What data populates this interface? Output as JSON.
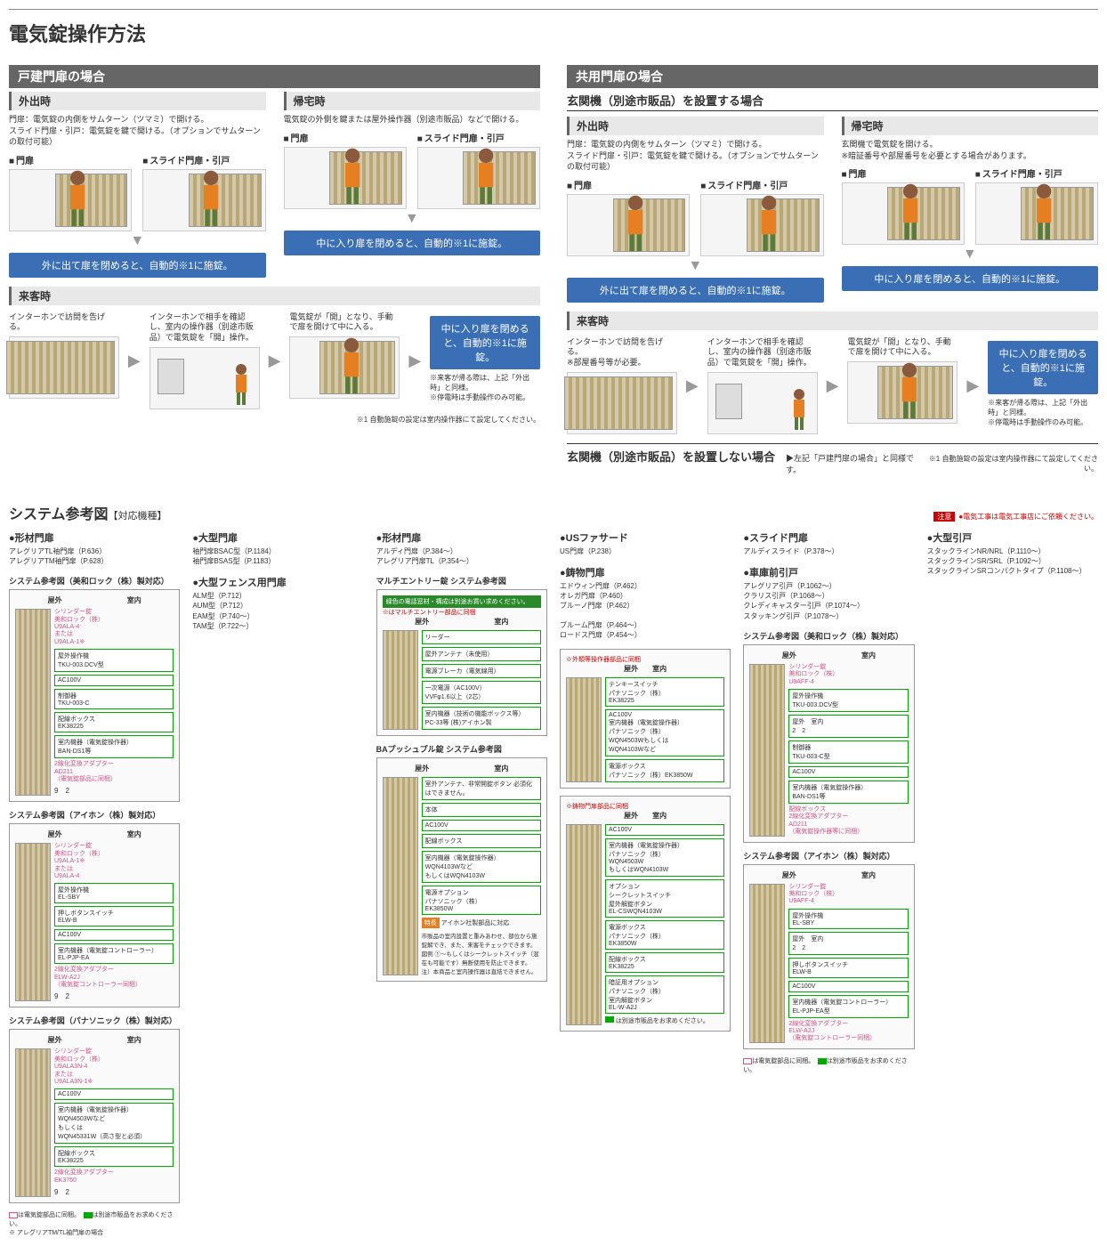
{
  "page_title": "電気錠操作方法",
  "left": {
    "section": "戸建門扉の場合",
    "out": {
      "title": "外出時",
      "desc": "門扉：電気錠の内側をサムターン（ツマミ）で開ける。\nスライド門扉・引戸：電気錠を鍵で開ける。（オプションでサムターンの取付可能）",
      "gate1": "門扉",
      "gate2": "スライド門扉・引戸",
      "box": "外に出て扉を閉めると、自動的※1に施錠。"
    },
    "home": {
      "title": "帰宅時",
      "desc": "電気錠の外側を鍵または屋外操作器（別途市販品）などで開ける。",
      "gate1": "門扉",
      "gate2": "スライド門扉・引戸",
      "box": "中に入り扉を閉めると、自動的※1に施錠。"
    },
    "visitor": {
      "title": "来客時",
      "step1": "インターホンで訪問を告げる。",
      "step2": "インターホンで相手を確認し、室内の操作器（別途市販品）で電気錠を「開」操作。",
      "step3": "電気錠が「開」となり、手動で扉を開けて中に入る。",
      "box": "中に入り扉を閉めると、自動的※1に施錠。",
      "notes": "※来客が帰る際は、上記「外出時」と同様。\n※停電時は手動操作のみ可能。"
    },
    "footnote": "※1 自動施錠の設定は室内操作器にて設定してください。"
  },
  "right": {
    "section": "共用門扉の場合",
    "sub1_title": "玄関機（別途市販品）を設置する場合",
    "out": {
      "title": "外出時",
      "desc": "門扉：電気錠の内側をサムターン（ツマミ）で開ける。\nスライド門扉・引戸：電気錠を鍵で開ける。（オプションでサムターンの取付可能）",
      "gate1": "門扉",
      "gate2": "スライド門扉・引戸",
      "box": "外に出て扉を閉めると、自動的※1に施錠。"
    },
    "home": {
      "title": "帰宅時",
      "desc": "玄関機で電気錠を開ける。\n※暗証番号や部屋番号を必要とする場合があります。",
      "gate1": "門扉",
      "gate2": "スライド門扉・引戸",
      "box": "中に入り扉を閉めると、自動的※1に施錠。"
    },
    "visitor": {
      "title": "来客時",
      "step1": "インターホンで訪問を告げる。\n※部屋番号等が必要。",
      "step2": "インターホンで相手を確認し、室内の操作器（別途市販品）で電気錠を「開」操作。",
      "step3": "電気錠が「開」となり、手動で扉を開けて中に入る。",
      "box": "中に入り扉を閉めると、自動的※1に施錠。",
      "notes": "※来客が帰る際は、上記「外出時」と同様。\n※停電時は手動操作のみ可能。"
    },
    "sub2_title": "玄関機（別途市販品）を設置しない場合",
    "sub2_note": "▶左記「戸建門扉の場合」と同様です。",
    "footnote": "※1 自動施錠の設定は室内操作器にて設定してください。"
  },
  "sys": {
    "title": "システム参考図",
    "sub": "【対応機種】",
    "warning_badge": "注意",
    "warning": "●電気工事は電気工事店にご依頼ください。",
    "zone_out": "屋外",
    "zone_in": "室内",
    "cols": [
      {
        "cats": [
          {
            "head": "形材門扉",
            "items": "アレグリアTL袖門扉（P.636）\nアレグリアTM袖門扉（P.628）"
          }
        ],
        "diagrams": [
          {
            "title": "システム参考図（美和ロック（株）製対応）",
            "pink": "シリンダー錠\n美和ロック（株）\nU9ALA-4\nまたは\nU9ALA-1※",
            "pink2": "2線化変換アダプター\nAD211\n（電気錠部品に同梱）",
            "comps": [
              "屋外操作機\nTKU-003.DCV型",
              "AC100V",
              "制御器\nTKU-003-C",
              "配線ボックス\nEK38225",
              "室内機器（電気錠操作器）\nBAN-DS1等"
            ],
            "nums": "9　2"
          },
          {
            "title": "システム参考図（アイホン（株）製対応）",
            "pink": "シリンダー錠\n美和ロック（株）\nU9ALA-1※\nまたは\nU9ALA-4",
            "pink2": "2線化変換アダプター\nELW-A2J\n（電気錠コントローラー同梱）",
            "comps": [
              "屋外操作機\nEL-SBY",
              "押しボタンスイッチ\nELW-B",
              "AC100V",
              "室内機器（電気錠コントローラー）\nEL-PJP-EA"
            ],
            "nums": "9　2"
          },
          {
            "title": "システム参考図（パナソニック（株）製対応）",
            "pink": "シリンダー錠\n美和ロック（株）\nU9ALA3N-4\nまたは\nU9ALA3N-1※",
            "pink2": "2線化変換アダプター\nEK3760",
            "comps": [
              "AC100V",
              "室内機器（電気錠操作器）\nWQN4503Wなど\nもしくは\nWQN45331W（高さ型と必須）",
              "配線ボックス\nEK38225"
            ],
            "nums": "9　2"
          }
        ],
        "legend_pink": "は電気錠部品に同梱。",
        "legend_green": "は別途市販品をお求めください。",
        "legend_note": "※ アレグリアTM/TL袖門扉の場合"
      },
      {
        "cats": [
          {
            "head": "大型門扉",
            "items": "袖門扉BSAC型（P.1184）\n袖門扉BSAS型（P.1183）"
          },
          {
            "head": "大型フェンス用門扉",
            "items": "ALM型（P.712）\nAUM型（P.712）\nEAM型（P.740〜）\nTAM型（P.722〜）"
          }
        ]
      },
      {
        "cats": [
          {
            "head": "形材門扉",
            "items": "アルディ門扉（P.384〜）\nアレグリア門扉TL（P.354〜）"
          }
        ],
        "diagrams": [
          {
            "title": "マルチエントリー錠 システム参考図",
            "green_banner": "緑色の電話窓材・構成は別途お買い求めください。",
            "red": "※はマルチエントリー部品に同梱",
            "comps": [
              "リーダー",
              "屋外アンテナ（未使用）",
              "電源ブレーカ（電気線用）",
              "一次電源（AC100V）\nVVFφ1.6以上（2芯）",
              "室内機器（技術の機能ボックス等）\nPC-33等 (株)アイホン製"
            ]
          },
          {
            "title": "BAプッシュプル錠 システム参考図",
            "comps": [
              "室外アンテナ、非常開錠ボタン 必須化はできません。",
              "本体",
              "AC100V",
              "配線ボックス",
              "室内機器（電気錠操作器）\nWQN4103Wなど\nもしくはWQN4103W",
              "電源オプション\nパナソニック（株）\nEK3850W"
            ],
            "orange": "特長",
            "orange_text": "アイホン社製部品に対応",
            "sidenote": "市販品の室内設置と重みあわせ、部位から施錠解でき、また、来客をチェックできます。\n図例 ①〜もしくはシークレットスイッチ（混在も可能です）無断使用を防止できます。\n注）本商品と室内操作器は直結できません。"
          }
        ]
      },
      {
        "cats": [
          {
            "head": "USファサード",
            "items": "US門扉（P.238）"
          }
        ],
        "diagram_single": {
          "zone_labels": "屋外　　室内",
          "comps": [
            "テンキースイッチ\nパナソニック（株）\nEK38225",
            "AC100V\n室内機器（電気錠操作器）\nパナソニック（株）\nWQN4503Wもしくは\nWQN4103Wなど",
            "電源ボックス\nパナソニック（株）EK3850W"
          ],
          "red": "※外類等操作器部品に同梱"
        },
        "cats2": [
          {
            "head": "鋳物門扉",
            "items": "エドウィン門扉（P.462）\nオレガ門扉（P.460）\nブルーノ門扉（P.462）"
          },
          {
            "head2": "ブルーム門扉（P.464〜）\nロードス門扉（P.454〜）"
          }
        ],
        "diagram_single2": {
          "zone_labels": "屋外　　室内",
          "comps": [
            "AC100V",
            "室内機器（電気錠操作器）\nパナソニック（株）\nWQN4503W\nもしくはWQN4103W",
            "オプション\nシークレットスイッチ\n屋外解錠ボタン\nEL-CSWQN4103W",
            "電源ボックス\nパナソニック（株）\nEK3850W",
            "配線ボックス\nEK38225",
            "暗証用オプション\nパナソニック（株）\n室内解錠ボタン\nEL-W-A2J"
          ],
          "red": "※鋳物門扉部品に同梱",
          "green_text": "は別途市販品をお求めください。"
        }
      },
      {
        "cats": [
          {
            "head": "スライド門扉",
            "items": "アルディスライド（P.378〜）"
          },
          {
            "head": "車庫前引戸",
            "items": "アレグリア引戸（P.1062〜）\nクラリス引戸（P.1068〜）\nクレディキャスター引戸（P.1074〜）\nスタッキング引戸（P.1078〜）"
          }
        ],
        "diagrams": [
          {
            "title": "システム参考図（美和ロック（株）製対応）",
            "pink": "シリンダー錠\n美和ロック（株）\nU9AFF-4",
            "pink2": "配線ボックス\n2線化変換アダプター\nAD211\n（電気錠操作器等に同梱）",
            "comps": [
              "屋外操作機\nTKU-003.DCV型",
              "屋外　室内\n2　2",
              "制御器\nTKU-003-C型",
              "AC100V",
              "室内機器（電気錠操作器）\nBAN-DS1等"
            ]
          },
          {
            "title": "システム参考図（アイホン（株）製対応）",
            "pink": "シリンダー錠\n美和ロック（株）\nU9AFF-4",
            "pink2": "2線化変換アダプター\nELW-A2J\n（電気錠コントローラー同梱）",
            "comps": [
              "屋外操作機\nEL-SBY",
              "屋外　室内\n2　2",
              "押しボタンスイッチ\nELW-B",
              "AC100V",
              "室内機器（電気錠コントローラー）\nEL-PJP-EA型"
            ]
          }
        ],
        "legend_pink": "は電気錠部品に同梱。",
        "legend_green": "は別途市販品をお求めください。"
      },
      {
        "cats": [
          {
            "head": "大型引戸",
            "items": "スタックラインNR/NRL（P.1110〜）\nスタックラインSR/SRL（P.1092〜）\nスタックラインSRコンパクトタイプ（P.1108〜）"
          }
        ]
      }
    ]
  },
  "colors": {
    "section_bg": "#666666",
    "blue_box": "#3b6fb5",
    "scenario_bg": "#e8e8e8",
    "pink": "#d4548a",
    "green": "#0a8a0a",
    "red": "#cc0000",
    "orange": "#e67e22"
  }
}
